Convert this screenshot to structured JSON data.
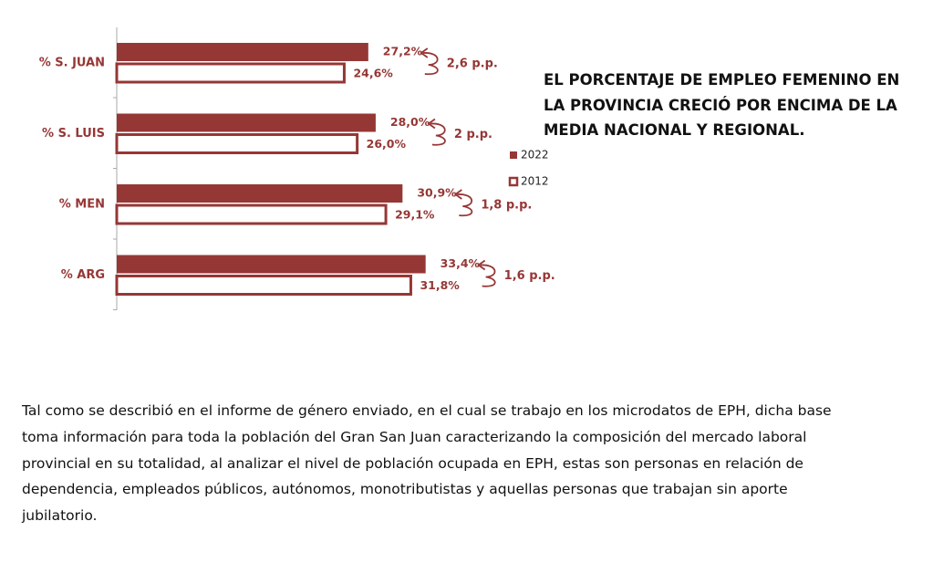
{
  "chart_data": {
    "type": "hbar",
    "title": "EL PORCENTAJE DE EMPLEO FEMENINO EN LA PROVINCIA CRECIÓ POR ENCIMA DE LA MEDIA NACIONAL Y REGIONAL.",
    "categories": [
      "% S. JUAN",
      "% S. LUIS",
      "% MEN",
      "% ARG"
    ],
    "series": [
      {
        "name": "2022",
        "color": "#953735",
        "values": [
          27.2,
          28.0,
          30.9,
          33.4
        ],
        "value_labels": [
          "27,2%",
          "28,0%",
          "30,9%",
          "33,4%"
        ]
      },
      {
        "name": "2012",
        "color": "#ffffff",
        "values": [
          24.6,
          26.0,
          29.1,
          31.8
        ],
        "value_labels": [
          "24,6%",
          "26,0%",
          "29,1%",
          "31,8%"
        ]
      }
    ],
    "differences": {
      "values": [
        2.6,
        2,
        1.8,
        1.6
      ],
      "value_labels": [
        "2,6 p.p.",
        "2 p.p.",
        "1,8 p.p.",
        "1,6 p.p."
      ]
    },
    "xlim": [
      0,
      50
    ]
  },
  "paragraph": {
    "lines": [
      "Tal como se describió en el informe de género enviado,  en el cual se trabajo en los microdatos de EPH, dicha base",
      "toma información para toda la población del Gran San Juan caracterizando la composición del mercado laboral",
      "provincial en su totalidad, al analizar el nivel de  población ocupada en EPH, estas  son personas en relación de",
      "dependencia,  empleados públicos, autónomos, monotributistas y aquellas personas que trabajan sin aporte",
      "jubilatorio."
    ]
  }
}
